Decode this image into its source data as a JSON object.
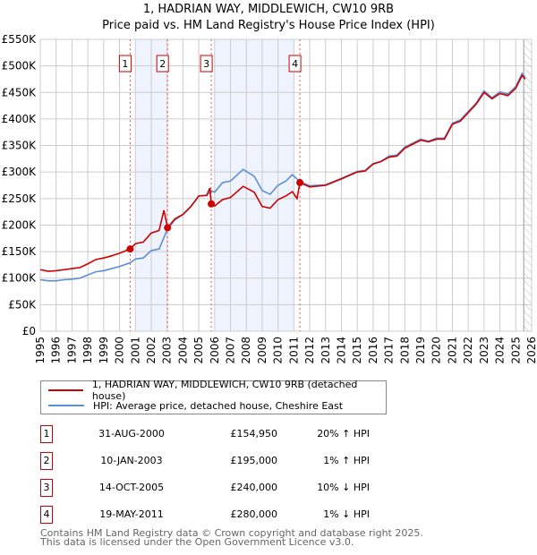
{
  "chart_data": {
    "type": "line",
    "title": "1, HADRIAN WAY, MIDDLEWICH, CW10 9RB",
    "subtitle": "Price paid vs. HM Land Registry's House Price Index (HPI)",
    "xlim": [
      1995,
      2026
    ],
    "ylim": [
      0,
      550000
    ],
    "x_ticks": [
      "1995",
      "1996",
      "1997",
      "1998",
      "1999",
      "2000",
      "2001",
      "2002",
      "2003",
      "2004",
      "2005",
      "2006",
      "2007",
      "2008",
      "2009",
      "2010",
      "2011",
      "2012",
      "2013",
      "2014",
      "2015",
      "2016",
      "2017",
      "2018",
      "2019",
      "2020",
      "2021",
      "2022",
      "2023",
      "2024",
      "2025",
      "2026"
    ],
    "y_ticks": [
      "£0",
      "£50K",
      "£100K",
      "£150K",
      "£200K",
      "£250K",
      "£300K",
      "£350K",
      "£400K",
      "£450K",
      "£500K",
      "£550K"
    ],
    "grid": true,
    "series": [
      {
        "name": "1, HADRIAN WAY, MIDDLEWICH, CW10 9RB (detached house)",
        "color": "#cc0000",
        "x": [
          1995,
          1995.5,
          1996,
          1996.5,
          1997,
          1997.5,
          1998,
          1998.5,
          1999,
          1999.5,
          2000,
          2000.67,
          2001,
          2001.5,
          2002,
          2002.5,
          2002.8,
          2003.03,
          2003.5,
          2004,
          2004.5,
          2005,
          2005.5,
          2005.7,
          2005.79,
          2006,
          2006.5,
          2007,
          2007.8,
          2008.5,
          2009,
          2009.5,
          2010,
          2010.5,
          2010.9,
          2011.2,
          2011.38,
          2012,
          2013,
          2014,
          2015,
          2015.5,
          2016,
          2016.5,
          2017,
          2017.5,
          2018,
          2019,
          2019.5,
          2020,
          2020.5,
          2021,
          2021.5,
          2022,
          2022.5,
          2023,
          2023.5,
          2024,
          2024.5,
          2025,
          2025.4,
          2025.6
        ],
        "y": [
          116000,
          113000,
          114000,
          116000,
          118000,
          120000,
          127000,
          135000,
          138000,
          142000,
          147000,
          154950,
          165000,
          168000,
          185000,
          190000,
          228000,
          195000,
          212000,
          220000,
          235000,
          255000,
          256000,
          270000,
          240000,
          236000,
          248000,
          252000,
          273000,
          262000,
          235000,
          232000,
          248000,
          255000,
          263000,
          250000,
          280000,
          272000,
          275000,
          287000,
          300000,
          302000,
          315000,
          320000,
          328000,
          330000,
          345000,
          360000,
          357000,
          362000,
          362000,
          390000,
          396000,
          412000,
          428000,
          450000,
          438000,
          448000,
          444000,
          458000,
          482000,
          475000
        ]
      },
      {
        "name": "HPI: Average price, detached house, Cheshire East",
        "color": "#5b8fd4",
        "x": [
          1995,
          1995.5,
          1996,
          1996.5,
          1997,
          1997.5,
          1998,
          1998.5,
          1999,
          1999.5,
          2000,
          2000.67,
          2001,
          2001.5,
          2002,
          2002.5,
          2003.03,
          2003.5,
          2004,
          2004.5,
          2005,
          2005.5,
          2005.79,
          2006,
          2006.5,
          2007,
          2007.8,
          2008.5,
          2009,
          2009.5,
          2010,
          2010.5,
          2010.9,
          2011.38,
          2012,
          2013,
          2014,
          2015,
          2015.5,
          2016,
          2016.5,
          2017,
          2017.5,
          2018,
          2019,
          2019.5,
          2020,
          2020.5,
          2021,
          2021.5,
          2022,
          2022.5,
          2023,
          2023.5,
          2024,
          2024.5,
          2025,
          2025.4,
          2025.6
        ],
        "y": [
          97000,
          95000,
          95000,
          97000,
          98000,
          100000,
          106000,
          112000,
          114000,
          118000,
          122000,
          129000,
          136000,
          138000,
          152000,
          155000,
          193000,
          210000,
          220000,
          235000,
          255000,
          256000,
          265000,
          262000,
          280000,
          283000,
          305000,
          292000,
          265000,
          258000,
          275000,
          283000,
          295000,
          282000,
          274000,
          276000,
          288000,
          301000,
          303000,
          316000,
          320000,
          330000,
          332000,
          347000,
          362000,
          358000,
          364000,
          364000,
          392000,
          398000,
          414000,
          430000,
          453000,
          440000,
          451000,
          447000,
          461000,
          486000,
          479000
        ]
      }
    ],
    "sales": [
      {
        "label": "1",
        "date": "31-AUG-2000",
        "x": 2000.67,
        "price": "£154,950",
        "value": 154950,
        "hpi": "20% ↑ HPI"
      },
      {
        "label": "2",
        "date": "10-JAN-2003",
        "x": 2003.03,
        "price": "£195,000",
        "value": 195000,
        "hpi": "1% ↑ HPI"
      },
      {
        "label": "3",
        "date": "14-OCT-2005",
        "x": 2005.79,
        "price": "£240,000",
        "value": 240000,
        "hpi": "10% ↓ HPI"
      },
      {
        "label": "4",
        "date": "19-MAY-2011",
        "x": 2011.38,
        "price": "£280,000",
        "value": 280000,
        "hpi": "1% ↓ HPI"
      }
    ],
    "shaded_ranges": [
      [
        2001,
        2003.03
      ],
      [
        2006,
        2011
      ]
    ],
    "hatched_from": 2025.5
  },
  "footer": {
    "line1": "Contains HM Land Registry data © Crown copyright and database right 2025.",
    "line2": "This data is licensed under the Open Government Licence v3.0."
  }
}
